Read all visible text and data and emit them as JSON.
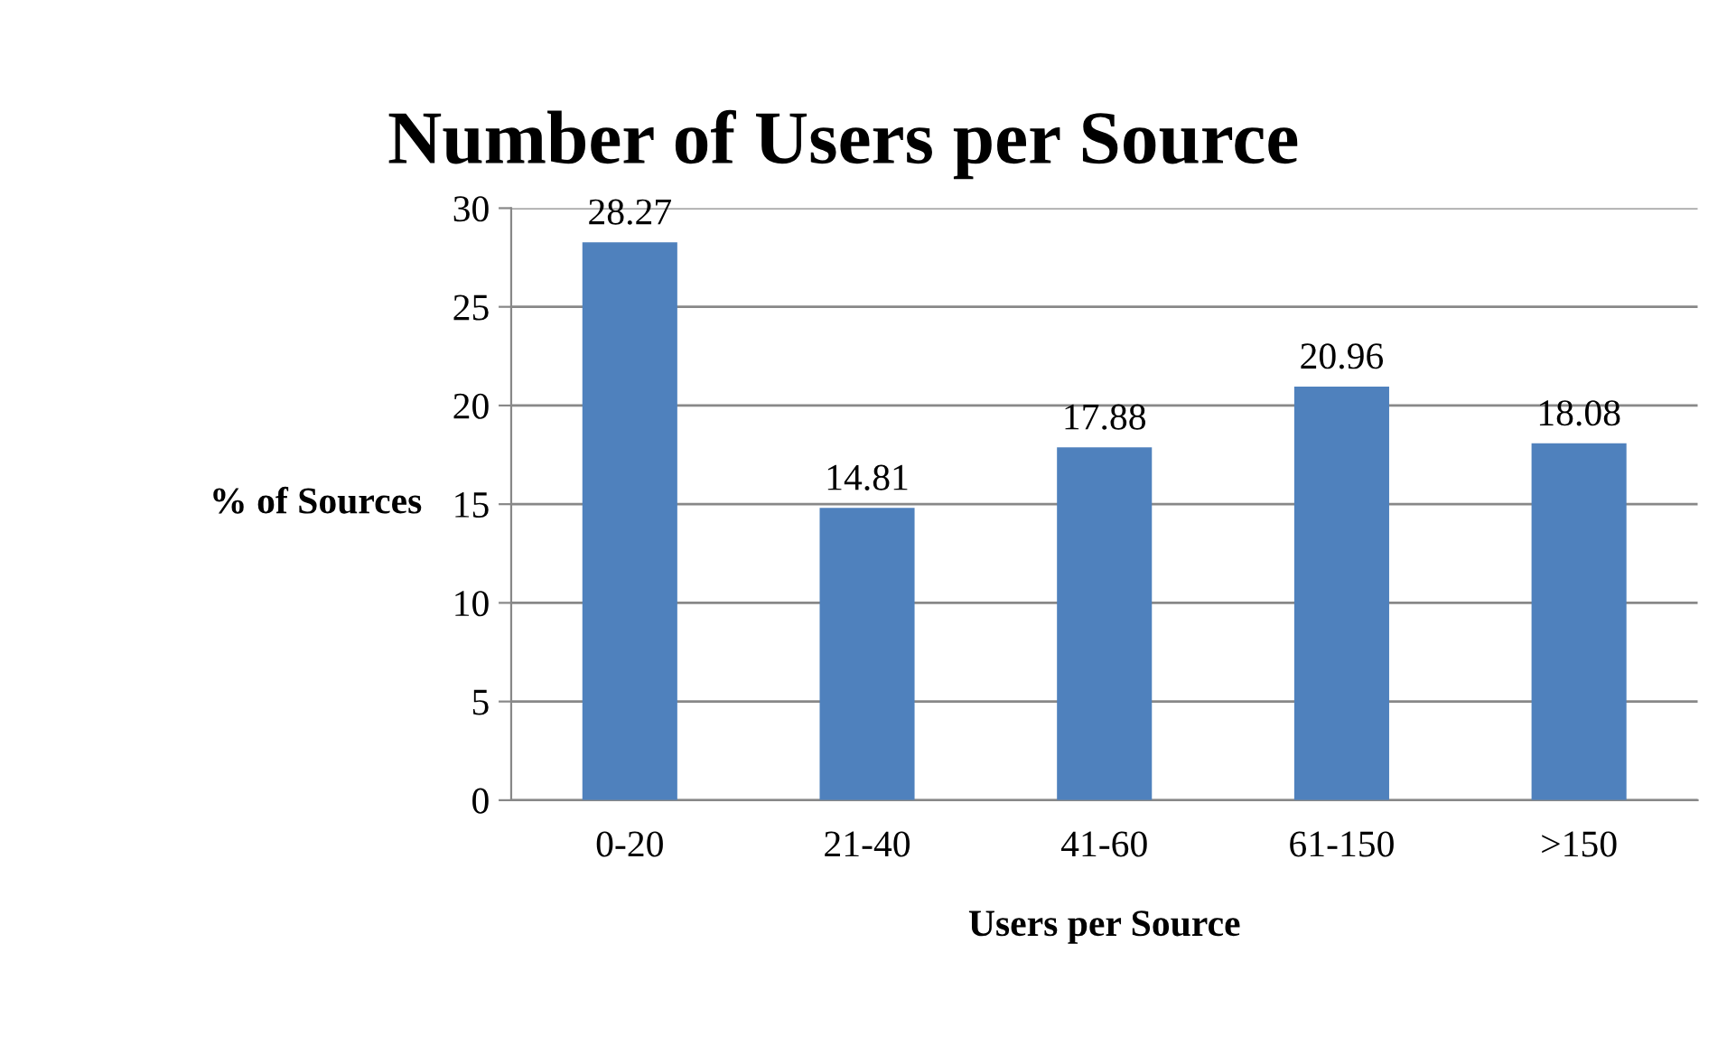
{
  "chart_data": {
    "type": "bar",
    "title": "Number of Users per Source",
    "xlabel": "Users per Source",
    "ylabel": "% of Sources",
    "categories": [
      "0-20",
      "21-40",
      "41-60",
      "61-150",
      ">150"
    ],
    "values": [
      28.27,
      14.81,
      17.88,
      20.96,
      18.08
    ],
    "color": "#4f81bd",
    "ylim": [
      0,
      30
    ],
    "yticks": [
      0,
      5,
      10,
      15,
      20,
      25,
      30
    ],
    "grid": "y",
    "data_labels": true
  }
}
